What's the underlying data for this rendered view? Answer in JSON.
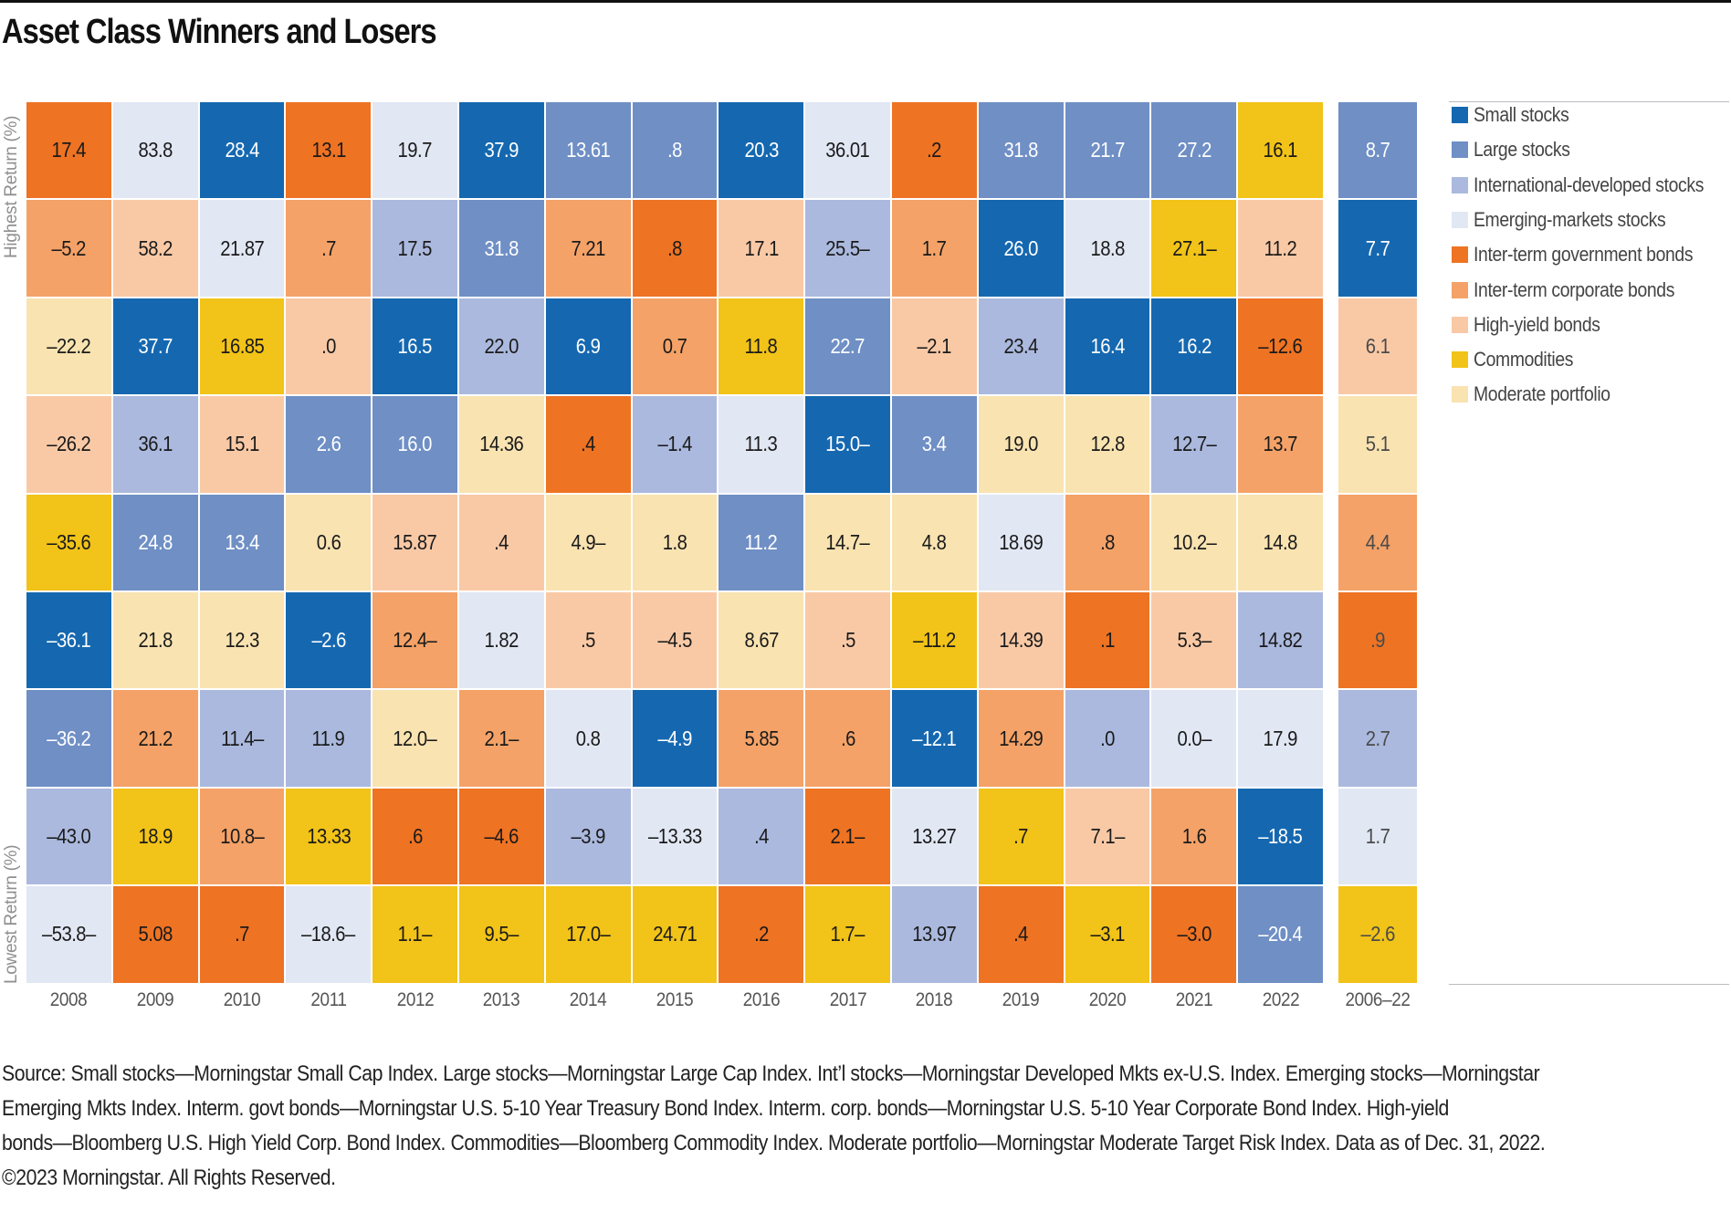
{
  "chart_data": {
    "type": "heatmap",
    "title": "Asset Class Winners and Losers",
    "y_axis_top_label": "Highest Return (%)",
    "y_axis_bottom_label": "Lowest Return (%)",
    "xlabel": "",
    "ylabel": "",
    "legend_position": "right",
    "asset_classes": {
      "S": {
        "name": "Small stocks",
        "color": "#1568B0",
        "text_color": "#ffffff"
      },
      "L": {
        "name": "Large stocks",
        "color": "#6F8FC5",
        "text_color": "#ffffff"
      },
      "I": {
        "name": "International-developed stocks",
        "color": "#ABB9DE",
        "text_color": "#1a1a1a"
      },
      "E": {
        "name": "Emerging-markets stocks",
        "color": "#E1E7F3",
        "text_color": "#1a1a1a"
      },
      "G": {
        "name": "Inter-term government bonds",
        "color": "#EE7323",
        "text_color": "#1a1a1a"
      },
      "C": {
        "name": "Inter-term corporate bonds",
        "color": "#F4A267",
        "text_color": "#1a1a1a"
      },
      "H": {
        "name": "High-yield bonds",
        "color": "#F9C9A6",
        "text_color": "#1a1a1a"
      },
      "M": {
        "name": "Commodities",
        "color": "#F2C318",
        "text_color": "#1a1a1a"
      },
      "P": {
        "name": "Moderate portfolio",
        "color": "#F9E3B1",
        "text_color": "#1a1a1a"
      }
    },
    "legend_order": [
      "S",
      "L",
      "I",
      "E",
      "G",
      "C",
      "H",
      "M",
      "P"
    ],
    "columns": [
      {
        "label": "2008",
        "cells": [
          [
            "G",
            "17.4"
          ],
          [
            "C",
            "–5.2"
          ],
          [
            "P",
            "–22.2"
          ],
          [
            "H",
            "–26.2"
          ],
          [
            "M",
            "–35.6"
          ],
          [
            "S",
            "–36.1"
          ],
          [
            "L",
            "–36.2"
          ],
          [
            "I",
            "–43.0"
          ],
          [
            "E",
            "–53.8–"
          ]
        ]
      },
      {
        "label": "2009",
        "cells": [
          [
            "E",
            "83.8"
          ],
          [
            "H",
            "58.2"
          ],
          [
            "S",
            "37.7"
          ],
          [
            "I",
            "36.1"
          ],
          [
            "L",
            "24.8"
          ],
          [
            "P",
            "21.8"
          ],
          [
            "C",
            "21.2"
          ],
          [
            "M",
            "18.9"
          ],
          [
            "G",
            "5.08"
          ]
        ]
      },
      {
        "label": "2010",
        "cells": [
          [
            "S",
            "28.4"
          ],
          [
            "E",
            "21.87"
          ],
          [
            "M",
            "16.85"
          ],
          [
            "H",
            "15.1"
          ],
          [
            "L",
            "13.4"
          ],
          [
            "P",
            "12.3"
          ],
          [
            "I",
            "11.4–"
          ],
          [
            "C",
            "10.8–"
          ],
          [
            "G",
            ".7"
          ]
        ]
      },
      {
        "label": "2011",
        "cells": [
          [
            "G",
            "13.1"
          ],
          [
            "C",
            ".7"
          ],
          [
            "H",
            ".0"
          ],
          [
            "L",
            "2.6"
          ],
          [
            "P",
            "0.6"
          ],
          [
            "S",
            "–2.6"
          ],
          [
            "I",
            "11.9"
          ],
          [
            "M",
            "13.33"
          ],
          [
            "E",
            "–18.6–"
          ]
        ]
      },
      {
        "label": "2012",
        "cells": [
          [
            "E",
            "19.7"
          ],
          [
            "I",
            "17.5"
          ],
          [
            "S",
            "16.5"
          ],
          [
            "L",
            "16.0"
          ],
          [
            "H",
            "15.87"
          ],
          [
            "C",
            "12.4–"
          ],
          [
            "P",
            "12.0–"
          ],
          [
            "G",
            ".6"
          ],
          [
            "M",
            "1.1–"
          ]
        ]
      },
      {
        "label": "2013",
        "cells": [
          [
            "S",
            "37.9"
          ],
          [
            "L",
            "31.8"
          ],
          [
            "I",
            "22.0"
          ],
          [
            "P",
            "14.36"
          ],
          [
            "H",
            ".4"
          ],
          [
            "E",
            "1.82"
          ],
          [
            "C",
            "2.1–"
          ],
          [
            "G",
            "–4.6"
          ],
          [
            "M",
            "9.5–"
          ]
        ]
      },
      {
        "label": "2014",
        "cells": [
          [
            "L",
            "13.61"
          ],
          [
            "C",
            "7.21"
          ],
          [
            "S",
            "6.9"
          ],
          [
            "G",
            ".4"
          ],
          [
            "P",
            "4.9–"
          ],
          [
            "H",
            ".5"
          ],
          [
            "E",
            "0.8"
          ],
          [
            "I",
            "–3.9"
          ],
          [
            "M",
            "17.0–"
          ]
        ]
      },
      {
        "label": "2015",
        "cells": [
          [
            "L",
            ".8"
          ],
          [
            "G",
            ".8"
          ],
          [
            "C",
            "0.7"
          ],
          [
            "I",
            "–1.4"
          ],
          [
            "P",
            "1.8"
          ],
          [
            "H",
            "–4.5"
          ],
          [
            "S",
            "–4.9"
          ],
          [
            "E",
            "–13.33"
          ],
          [
            "M",
            "24.71"
          ]
        ]
      },
      {
        "label": "2016",
        "cells": [
          [
            "S",
            "20.3"
          ],
          [
            "H",
            "17.1"
          ],
          [
            "M",
            "11.8"
          ],
          [
            "E",
            "11.3"
          ],
          [
            "L",
            "11.2"
          ],
          [
            "P",
            "8.67"
          ],
          [
            "C",
            "5.85"
          ],
          [
            "I",
            ".4"
          ],
          [
            "G",
            ".2"
          ]
        ]
      },
      {
        "label": "2017",
        "cells": [
          [
            "E",
            "36.01"
          ],
          [
            "I",
            "25.5–"
          ],
          [
            "L",
            "22.7"
          ],
          [
            "S",
            "15.0–"
          ],
          [
            "P",
            "14.7–"
          ],
          [
            "H",
            ".5"
          ],
          [
            "C",
            ".6"
          ],
          [
            "G",
            "2.1–"
          ],
          [
            "M",
            "1.7–"
          ]
        ]
      },
      {
        "label": "2018",
        "cells": [
          [
            "G",
            ".2"
          ],
          [
            "C",
            "1.7"
          ],
          [
            "H",
            "–2.1"
          ],
          [
            "L",
            "3.4"
          ],
          [
            "P",
            "4.8"
          ],
          [
            "M",
            "–11.2"
          ],
          [
            "S",
            "–12.1"
          ],
          [
            "E",
            "13.27"
          ],
          [
            "I",
            "13.97"
          ]
        ]
      },
      {
        "label": "2019",
        "cells": [
          [
            "L",
            "31.8"
          ],
          [
            "S",
            "26.0"
          ],
          [
            "I",
            "23.4"
          ],
          [
            "P",
            "19.0"
          ],
          [
            "E",
            "18.69"
          ],
          [
            "H",
            "14.39"
          ],
          [
            "C",
            "14.29"
          ],
          [
            "M",
            ".7"
          ],
          [
            "G",
            ".4"
          ]
        ]
      },
      {
        "label": "2020",
        "cells": [
          [
            "L",
            "21.7"
          ],
          [
            "E",
            "18.8"
          ],
          [
            "S",
            "16.4"
          ],
          [
            "P",
            "12.8"
          ],
          [
            "C",
            ".8"
          ],
          [
            "G",
            ".1"
          ],
          [
            "I",
            ".0"
          ],
          [
            "H",
            "7.1–"
          ],
          [
            "M",
            "–3.1"
          ]
        ]
      },
      {
        "label": "2021",
        "cells": [
          [
            "L",
            "27.2"
          ],
          [
            "M",
            "27.1–"
          ],
          [
            "S",
            "16.2"
          ],
          [
            "I",
            "12.7–"
          ],
          [
            "P",
            "10.2–"
          ],
          [
            "H",
            "5.3–"
          ],
          [
            "E",
            "0.0–"
          ],
          [
            "C",
            "1.6"
          ],
          [
            "G",
            "–3.0"
          ]
        ]
      },
      {
        "label": "2022",
        "cells": [
          [
            "M",
            "16.1"
          ],
          [
            "H",
            "11.2"
          ],
          [
            "G",
            "–12.6"
          ],
          [
            "C",
            "13.7"
          ],
          [
            "P",
            "14.8"
          ],
          [
            "I",
            "14.82"
          ],
          [
            "E",
            "17.9"
          ],
          [
            "S",
            "–18.5"
          ],
          [
            "L",
            "–20.4"
          ]
        ]
      }
    ],
    "summary_column": {
      "label": "2006–22",
      "cells": [
        [
          "L",
          "8.7"
        ],
        [
          "S",
          "7.7"
        ],
        [
          "H",
          "6.1"
        ],
        [
          "P",
          "5.1"
        ],
        [
          "C",
          "4.4"
        ],
        [
          "G",
          ".9"
        ],
        [
          "I",
          "2.7"
        ],
        [
          "E",
          "1.7"
        ],
        [
          "M",
          "–2.6"
        ]
      ]
    }
  },
  "footnote": {
    "lines": [
      "Source: Small stocks—Morningstar Small Cap Index. Large stocks—Morningstar Large Cap Index. Int’l stocks—Morningstar Developed Mkts ex-U.S. Index. Emerging stocks—Morningstar",
      "Emerging Mkts Index. Interm. govt bonds—Morningstar U.S. 5-10 Year Treasury Bond Index. Interm. corp. bonds—Morningstar U.S. 5-10 Year Corporate Bond Index. High-yield",
      "bonds—Bloomberg U.S. High Yield Corp. Bond Index. Commodities—Bloomberg Commodity Index. Moderate portfolio—Morningstar Moderate Target Risk Index. Data as of Dec. 31, 2022.",
      "©2023 Morningstar. All Rights Reserved."
    ]
  }
}
